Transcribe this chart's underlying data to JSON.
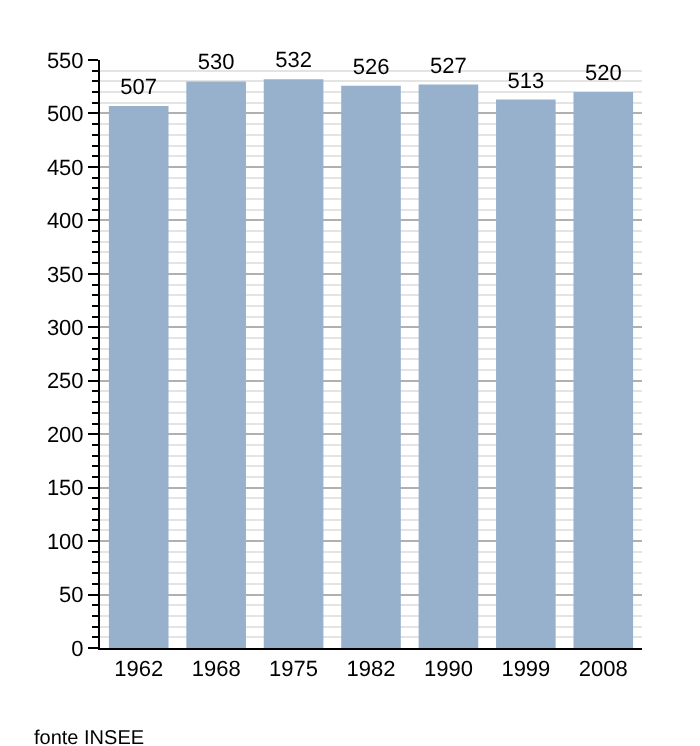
{
  "chart_data": {
    "type": "bar",
    "categories": [
      "1962",
      "1968",
      "1975",
      "1982",
      "1990",
      "1999",
      "2008"
    ],
    "values": [
      507,
      530,
      532,
      526,
      527,
      513,
      520
    ],
    "color": "#97b1cc",
    "data_labels": true,
    "ylim": [
      0,
      550
    ],
    "yticks": [
      0,
      50,
      100,
      150,
      200,
      250,
      300,
      350,
      400,
      450,
      500,
      550
    ],
    "grid": "y",
    "annotations": [
      "fonte INSEE"
    ]
  }
}
